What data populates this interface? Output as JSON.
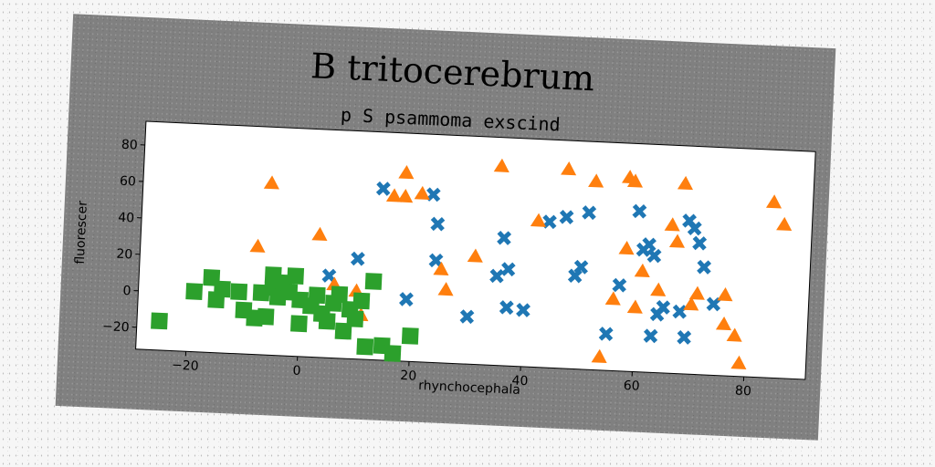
{
  "chart_data": {
    "type": "scatter",
    "title": "B tritocerebrum",
    "subtitle": "p S psammoma exscind",
    "xlabel": "rhynchocephala",
    "ylabel": "fluorescer",
    "xlim": [
      -29,
      91
    ],
    "ylim": [
      -32,
      93
    ],
    "xticks": [
      -20,
      0,
      20,
      40,
      60,
      80
    ],
    "yticks": [
      -20,
      0,
      20,
      40,
      60,
      80
    ],
    "grid": false,
    "series": [
      {
        "marker": "x",
        "color": "#1f77b4",
        "points": [
          [
            14,
            62
          ],
          [
            23,
            60
          ],
          [
            24,
            44
          ],
          [
            24,
            24
          ],
          [
            19,
            2
          ],
          [
            5,
            13
          ],
          [
            10,
            23
          ],
          [
            30,
            -6
          ],
          [
            35,
            17
          ],
          [
            36,
            38
          ],
          [
            37,
            21
          ],
          [
            37,
            0
          ],
          [
            40,
            -1
          ],
          [
            44,
            48
          ],
          [
            47,
            51
          ],
          [
            49,
            19
          ],
          [
            50,
            24
          ],
          [
            51,
            54
          ],
          [
            55,
            -12
          ],
          [
            57,
            15
          ],
          [
            60,
            56
          ],
          [
            61,
            35
          ],
          [
            62,
            38
          ],
          [
            63,
            32
          ],
          [
            63,
            -12
          ],
          [
            64,
            0
          ],
          [
            65,
            4
          ],
          [
            68,
            2
          ],
          [
            69,
            -12
          ],
          [
            69,
            52
          ],
          [
            70,
            48
          ],
          [
            71,
            40
          ],
          [
            72,
            27
          ],
          [
            74,
            7
          ]
        ]
      },
      {
        "marker": "triangle",
        "color": "#ff7f0e",
        "points": [
          [
            -6,
            62
          ],
          [
            -8,
            27
          ],
          [
            3,
            35
          ],
          [
            6,
            8
          ],
          [
            10,
            5
          ],
          [
            11,
            -8
          ],
          [
            16,
            58
          ],
          [
            18,
            71
          ],
          [
            18,
            58
          ],
          [
            21,
            60
          ],
          [
            25,
            19
          ],
          [
            26,
            8
          ],
          [
            31,
            27
          ],
          [
            35,
            77
          ],
          [
            42,
            48
          ],
          [
            47,
            77
          ],
          [
            52,
            71
          ],
          [
            54,
            -25
          ],
          [
            56,
            7
          ],
          [
            58,
            35
          ],
          [
            58,
            74
          ],
          [
            59,
            72
          ],
          [
            60,
            3
          ],
          [
            61,
            23
          ],
          [
            64,
            13
          ],
          [
            66,
            49
          ],
          [
            67,
            40
          ],
          [
            68,
            72
          ],
          [
            70,
            6
          ],
          [
            71,
            12
          ],
          [
            76,
            12
          ],
          [
            76,
            -4
          ],
          [
            78,
            -10
          ],
          [
            79,
            -25
          ],
          [
            84,
            64
          ],
          [
            86,
            52
          ]
        ]
      },
      {
        "marker": "square",
        "color": "#2ca02c",
        "points": [
          [
            -25,
            -16
          ],
          [
            -19,
            1
          ],
          [
            -16,
            9
          ],
          [
            -15,
            -3
          ],
          [
            -14,
            3
          ],
          [
            -11,
            2
          ],
          [
            -10,
            -8
          ],
          [
            -8,
            -12
          ],
          [
            -7,
            2
          ],
          [
            -6,
            -11
          ],
          [
            -5,
            12
          ],
          [
            -5,
            5
          ],
          [
            -4,
            0
          ],
          [
            -3,
            8
          ],
          [
            -2,
            3
          ],
          [
            -1,
            12
          ],
          [
            0,
            -1
          ],
          [
            0,
            -14
          ],
          [
            2,
            -4
          ],
          [
            3,
            2
          ],
          [
            4,
            -8
          ],
          [
            5,
            -12
          ],
          [
            6,
            -2
          ],
          [
            7,
            3
          ],
          [
            8,
            -17
          ],
          [
            9,
            -5
          ],
          [
            10,
            -10
          ],
          [
            11,
            0
          ],
          [
            12,
            -25
          ],
          [
            13,
            11
          ],
          [
            15,
            -24
          ],
          [
            17,
            -36
          ],
          [
            20,
            -18
          ]
        ]
      }
    ]
  }
}
